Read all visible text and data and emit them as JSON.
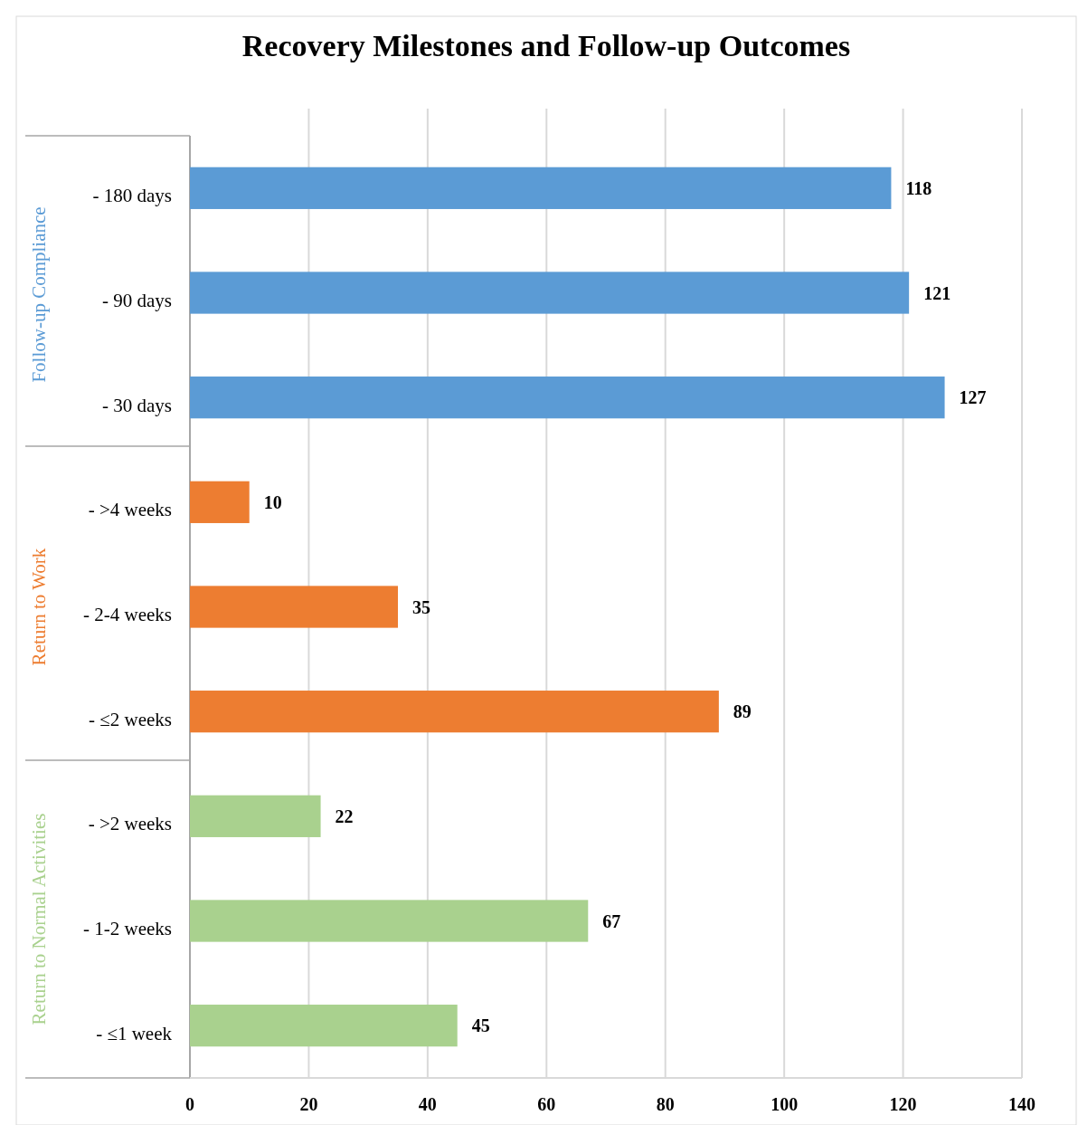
{
  "chart_data": {
    "type": "bar",
    "title": "Recovery Milestones and Follow-up Outcomes",
    "orientation": "horizontal",
    "stacked": true,
    "categories": [
      "- 180 days",
      "- 90 days",
      "- 30 days",
      "- >4 weeks",
      "- 2-4 weeks",
      "- ≤2 weeks",
      "- >2 weeks",
      "- 1-2 weeks",
      "- ≤1 week"
    ],
    "series": [
      {
        "name": "Follow-up Compliance",
        "color": "#5b9bd5",
        "values": [
          118,
          121,
          127,
          null,
          null,
          null,
          null,
          null,
          null
        ]
      },
      {
        "name": "Return to Work",
        "color": "#ed7d31",
        "values": [
          null,
          null,
          null,
          10,
          35,
          89,
          null,
          null,
          null
        ]
      },
      {
        "name": "Return to Normal Activities",
        "color": "#a9d18e",
        "values": [
          null,
          null,
          null,
          null,
          null,
          null,
          22,
          67,
          45
        ]
      }
    ],
    "xlim": [
      0,
      140
    ],
    "xticks": [
      0,
      20,
      40,
      60,
      80,
      100,
      120,
      140
    ],
    "grid": "x",
    "data_labels": true,
    "legend": false
  }
}
